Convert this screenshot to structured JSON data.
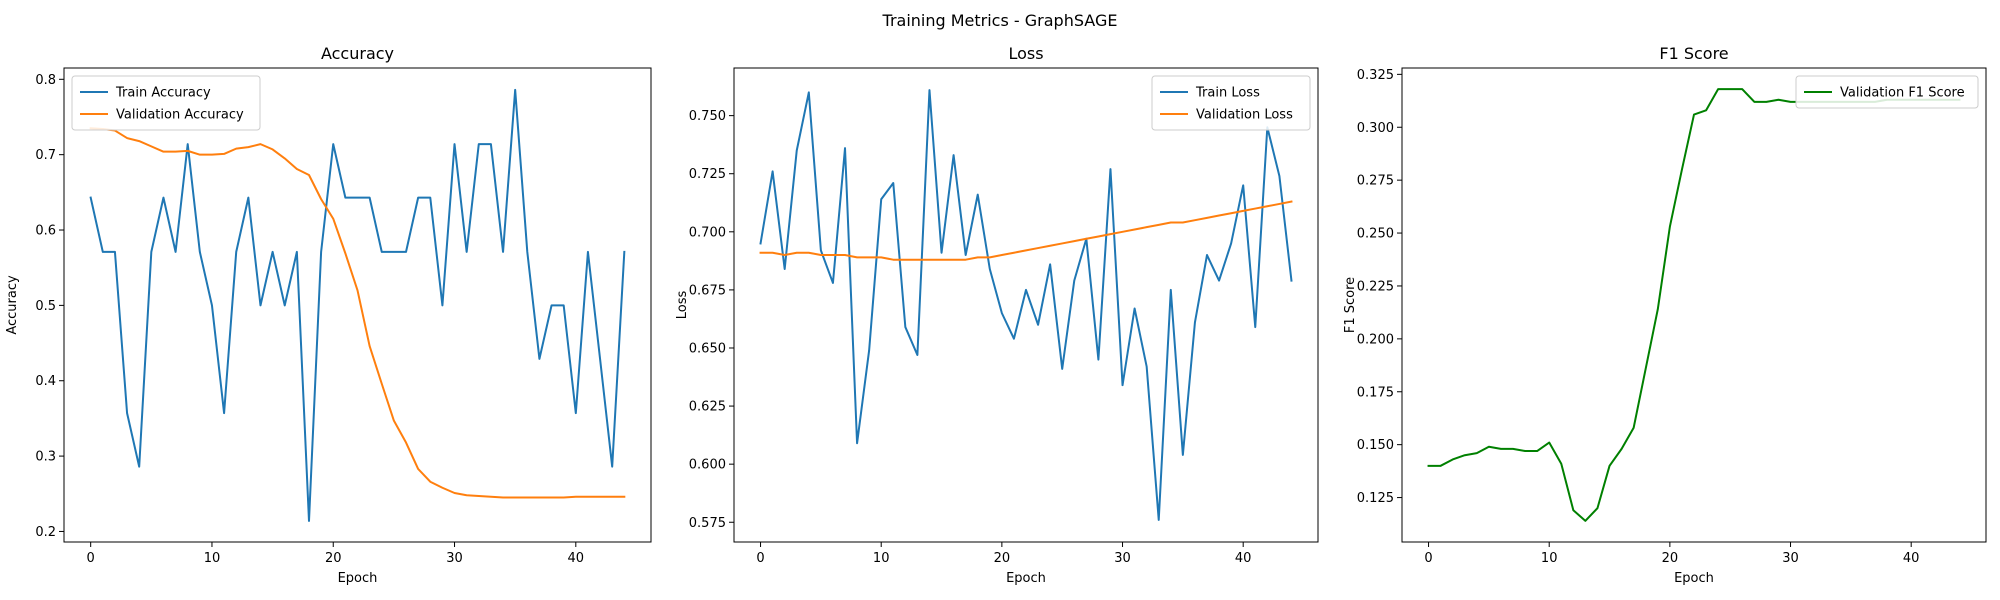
{
  "figure": {
    "suptitle": "Training Metrics - GraphSAGE"
  },
  "colors": {
    "train": "#1f77b4",
    "val": "#ff7f0e",
    "f1": "#008000",
    "axis": "#000000",
    "text": "#000000"
  },
  "chart_data": [
    {
      "type": "line",
      "title": "Accuracy",
      "xlabel": "Epoch",
      "ylabel": "Accuracy",
      "xlim": [
        -2.2,
        46.2
      ],
      "ylim": [
        0.186,
        0.815
      ],
      "xticks": [
        0,
        10,
        20,
        30,
        40
      ],
      "xtick_labels": [
        "0",
        "10",
        "20",
        "30",
        "40"
      ],
      "yticks": [
        0.2,
        0.3,
        0.4,
        0.5,
        0.6,
        0.7,
        0.8
      ],
      "ytick_labels": [
        "0.2",
        "0.3",
        "0.4",
        "0.5",
        "0.6",
        "0.7",
        "0.8"
      ],
      "legend_position": "top-left",
      "series": [
        {
          "name": "Train Accuracy",
          "color": "#1f77b4",
          "values": [
            0.643,
            0.571,
            0.571,
            0.357,
            0.286,
            0.571,
            0.643,
            0.571,
            0.714,
            0.571,
            0.5,
            0.357,
            0.571,
            0.643,
            0.5,
            0.571,
            0.5,
            0.571,
            0.214,
            0.571,
            0.714,
            0.643,
            0.643,
            0.643,
            0.571,
            0.571,
            0.571,
            0.643,
            0.643,
            0.5,
            0.714,
            0.571,
            0.714,
            0.714,
            0.571,
            0.786,
            0.571,
            0.429,
            0.5,
            0.5,
            0.357,
            0.571,
            0.429,
            0.286,
            0.571
          ]
        },
        {
          "name": "Validation Accuracy",
          "color": "#ff7f0e",
          "values": [
            0.735,
            0.734,
            0.732,
            0.722,
            0.718,
            0.711,
            0.704,
            0.704,
            0.705,
            0.7,
            0.7,
            0.701,
            0.708,
            0.71,
            0.714,
            0.707,
            0.695,
            0.681,
            0.673,
            0.641,
            0.615,
            0.569,
            0.52,
            0.446,
            0.396,
            0.347,
            0.318,
            0.283,
            0.266,
            0.258,
            0.251,
            0.248,
            0.247,
            0.246,
            0.245,
            0.245,
            0.245,
            0.245,
            0.245,
            0.245,
            0.246,
            0.246,
            0.246,
            0.246,
            0.246
          ]
        }
      ]
    },
    {
      "type": "line",
      "title": "Loss",
      "xlabel": "Epoch",
      "ylabel": "Loss",
      "xlim": [
        -2.2,
        46.2
      ],
      "ylim": [
        0.5665,
        0.7705
      ],
      "xticks": [
        0,
        10,
        20,
        30,
        40
      ],
      "xtick_labels": [
        "0",
        "10",
        "20",
        "30",
        "40"
      ],
      "yticks": [
        0.575,
        0.6,
        0.625,
        0.65,
        0.675,
        0.7,
        0.725,
        0.75
      ],
      "ytick_labels": [
        "0.575",
        "0.600",
        "0.625",
        "0.650",
        "0.675",
        "0.700",
        "0.725",
        "0.750"
      ],
      "legend_position": "top-right",
      "series": [
        {
          "name": "Train Loss",
          "color": "#1f77b4",
          "values": [
            0.695,
            0.726,
            0.684,
            0.735,
            0.76,
            0.692,
            0.678,
            0.736,
            0.609,
            0.649,
            0.714,
            0.721,
            0.659,
            0.647,
            0.761,
            0.691,
            0.733,
            0.69,
            0.716,
            0.684,
            0.665,
            0.654,
            0.675,
            0.66,
            0.686,
            0.641,
            0.679,
            0.697,
            0.645,
            0.727,
            0.634,
            0.667,
            0.642,
            0.576,
            0.675,
            0.604,
            0.661,
            0.69,
            0.679,
            0.695,
            0.72,
            0.659,
            0.745,
            0.724,
            0.679
          ]
        },
        {
          "name": "Validation Loss",
          "color": "#ff7f0e",
          "values": [
            0.691,
            0.691,
            0.69,
            0.691,
            0.691,
            0.69,
            0.69,
            0.69,
            0.689,
            0.689,
            0.689,
            0.688,
            0.688,
            0.688,
            0.688,
            0.688,
            0.688,
            0.688,
            0.689,
            0.689,
            0.69,
            0.691,
            0.692,
            0.693,
            0.694,
            0.695,
            0.696,
            0.697,
            0.698,
            0.699,
            0.7,
            0.701,
            0.702,
            0.703,
            0.704,
            0.704,
            0.705,
            0.706,
            0.707,
            0.708,
            0.709,
            0.71,
            0.711,
            0.712,
            0.713
          ]
        }
      ]
    },
    {
      "type": "line",
      "title": "F1 Score",
      "xlabel": "Epoch",
      "ylabel": "F1 Score",
      "xlim": [
        -2.2,
        46.2
      ],
      "ylim": [
        0.104,
        0.328
      ],
      "xticks": [
        0,
        10,
        20,
        30,
        40
      ],
      "xtick_labels": [
        "0",
        "10",
        "20",
        "30",
        "40"
      ],
      "yticks": [
        0.125,
        0.15,
        0.175,
        0.2,
        0.225,
        0.25,
        0.275,
        0.3,
        0.325
      ],
      "ytick_labels": [
        "0.125",
        "0.150",
        "0.175",
        "0.200",
        "0.225",
        "0.250",
        "0.275",
        "0.300",
        "0.325"
      ],
      "legend_position": "top-right",
      "series": [
        {
          "name": "Validation F1 Score",
          "color": "#008000",
          "values": [
            0.14,
            0.14,
            0.143,
            0.145,
            0.146,
            0.149,
            0.148,
            0.148,
            0.147,
            0.147,
            0.151,
            0.141,
            0.119,
            0.114,
            0.12,
            0.14,
            0.148,
            0.158,
            0.186,
            0.214,
            0.253,
            0.28,
            0.306,
            0.308,
            0.318,
            0.318,
            0.318,
            0.312,
            0.312,
            0.313,
            0.312,
            0.312,
            0.312,
            0.312,
            0.312,
            0.312,
            0.312,
            0.312,
            0.313,
            0.313,
            0.313,
            0.313,
            0.313,
            0.313,
            0.313
          ]
        }
      ]
    }
  ]
}
